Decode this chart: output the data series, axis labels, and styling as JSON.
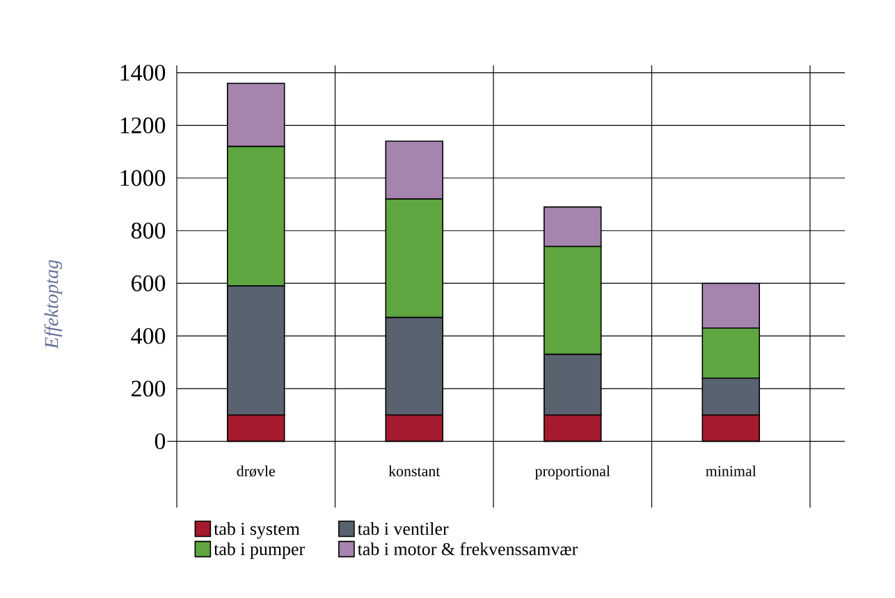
{
  "chart_data": {
    "type": "bar",
    "stacked": true,
    "ylabel": "Effektoptag",
    "categories": [
      "drøvle",
      "konstant",
      "proportional",
      "minimal"
    ],
    "series": [
      {
        "name": "tab i system",
        "color": "#a51a2e",
        "values": [
          100,
          100,
          100,
          100
        ]
      },
      {
        "name": "tab i ventiler",
        "color": "#59626f",
        "values": [
          490,
          370,
          230,
          140
        ]
      },
      {
        "name": "tab i pumper",
        "color": "#5fa640",
        "values": [
          530,
          450,
          410,
          190
        ]
      },
      {
        "name": "tab i motor & frekvenssamvær",
        "color": "#a584ad",
        "values": [
          240,
          220,
          150,
          170
        ]
      }
    ],
    "ylim": [
      0,
      1400
    ],
    "yticks": [
      0,
      200,
      400,
      600,
      800,
      1000,
      1200,
      1400
    ],
    "grid": true,
    "legend": "bottom"
  }
}
